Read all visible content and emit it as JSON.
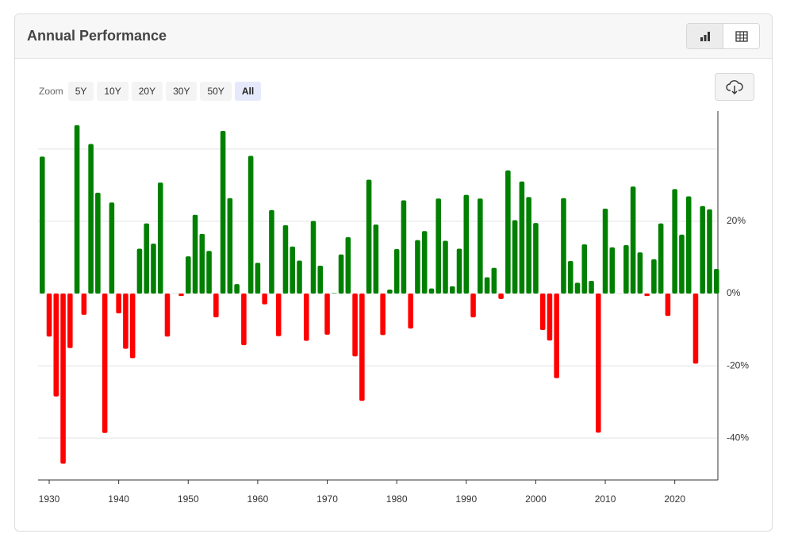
{
  "header": {
    "title": "Annual Performance"
  },
  "zoom": {
    "label": "Zoom",
    "options": [
      "5Y",
      "10Y",
      "20Y",
      "30Y",
      "50Y",
      "All"
    ]
  },
  "chart_data": {
    "type": "bar",
    "x": [
      1929,
      1930,
      1931,
      1932,
      1933,
      1934,
      1935,
      1936,
      1937,
      1938,
      1939,
      1940,
      1941,
      1942,
      1943,
      1944,
      1945,
      1946,
      1947,
      1948,
      1949,
      1950,
      1951,
      1952,
      1953,
      1954,
      1955,
      1956,
      1957,
      1958,
      1959,
      1960,
      1961,
      1962,
      1963,
      1964,
      1965,
      1966,
      1967,
      1968,
      1969,
      1970,
      1971,
      1972,
      1973,
      1974,
      1975,
      1976,
      1977,
      1978,
      1979,
      1980,
      1981,
      1982,
      1983,
      1984,
      1985,
      1986,
      1987,
      1988,
      1989,
      1990,
      1991,
      1992,
      1993,
      1994,
      1995,
      1996,
      1997,
      1998,
      1999,
      2000,
      2001,
      2002,
      2003,
      2004,
      2005,
      2006,
      2007,
      2008,
      2009,
      2010,
      2011,
      2012,
      2013,
      2014,
      2015,
      2016,
      2017,
      2018,
      2019,
      2020,
      2021,
      2022,
      2023,
      2024,
      2025,
      2026
    ],
    "values": [
      37.9,
      -11.9,
      -28.5,
      -47.1,
      -15.1,
      46.6,
      -5.9,
      41.4,
      27.9,
      -38.6,
      25.2,
      -5.5,
      -15.3,
      -17.9,
      12.4,
      19.4,
      13.8,
      30.7,
      -11.9,
      0.0,
      -0.7,
      10.3,
      21.8,
      16.5,
      11.8,
      -6.6,
      45.0,
      26.4,
      2.6,
      -14.3,
      38.1,
      8.5,
      -3.0,
      23.1,
      -11.8,
      18.9,
      13.0,
      9.1,
      -13.1,
      20.1,
      7.7,
      -11.4,
      0.1,
      10.8,
      15.6,
      -17.4,
      -29.7,
      31.5,
      19.1,
      -11.5,
      1.1,
      12.3,
      25.8,
      -9.7,
      14.8,
      17.3,
      1.4,
      26.3,
      14.6,
      2.0,
      12.4,
      27.3,
      -6.6,
      26.3,
      4.5,
      7.1,
      -1.5,
      34.1,
      20.3,
      31.0,
      26.7,
      19.5,
      -10.1,
      -13.0,
      -23.4,
      26.4,
      9.0,
      3.0,
      13.6,
      3.5,
      -38.5,
      23.5,
      12.8,
      0.0,
      13.4,
      29.6,
      11.4,
      -0.7,
      9.5,
      19.4,
      -6.2,
      28.9,
      16.3,
      26.9,
      -19.4,
      24.2,
      23.3,
      6.8
    ],
    "positive_color": "#008000",
    "negative_color": "#ff0000",
    "xlim": [
      1928.4,
      2026.2
    ],
    "xticks": [
      1930,
      1940,
      1950,
      1960,
      1970,
      1980,
      1990,
      2000,
      2010,
      2020
    ],
    "ylim": [
      -51.6,
      50.5
    ],
    "yticks": [
      {
        "value": -40,
        "label": "-40%"
      },
      {
        "value": -20,
        "label": "-20%"
      },
      {
        "value": 0,
        "label": "0%"
      },
      {
        "value": 20,
        "label": "20%"
      },
      {
        "value": 40,
        "label": null
      }
    ],
    "grid": true
  }
}
